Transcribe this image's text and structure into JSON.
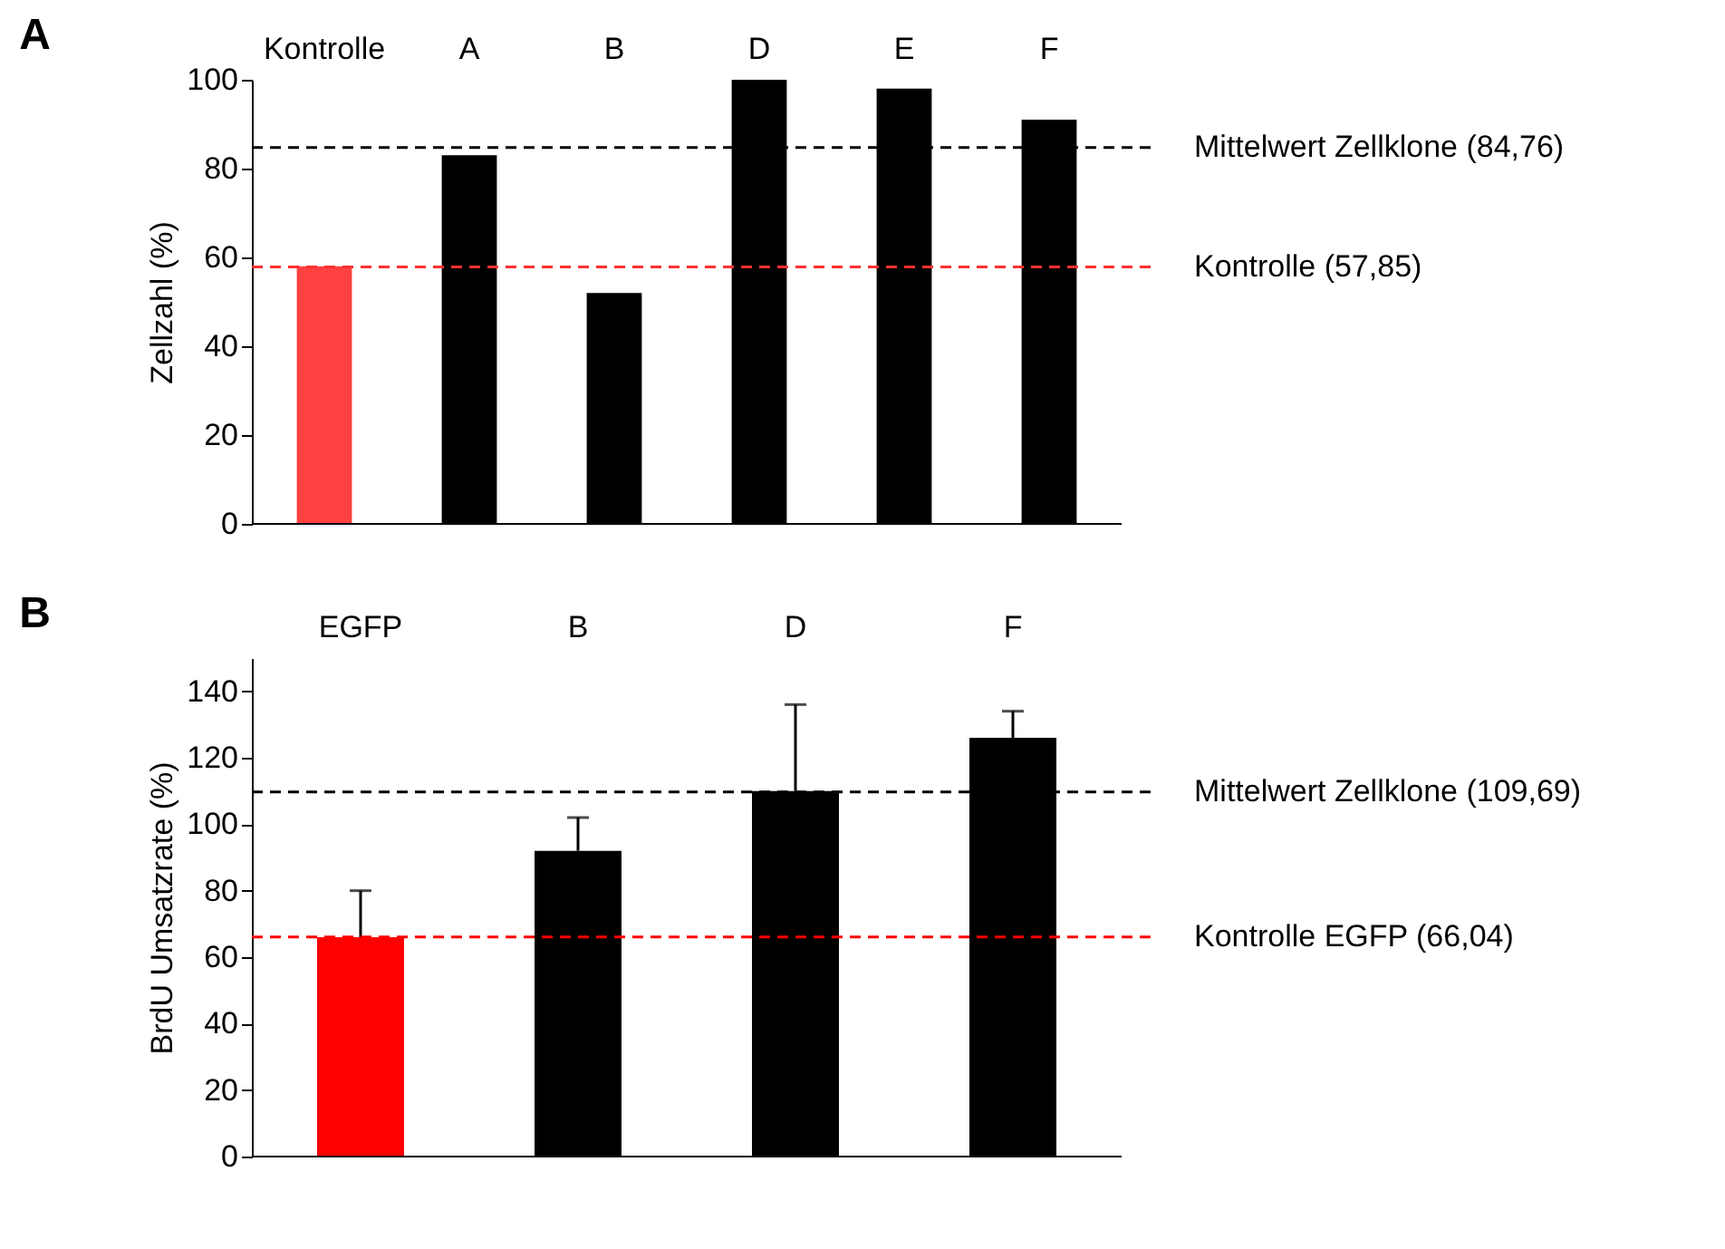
{
  "chart_data": [
    {
      "type": "bar",
      "title": "A",
      "ylabel": "Zellzahl (%)",
      "categories": [
        "Kontrolle",
        "A",
        "B",
        "D",
        "E",
        "F"
      ],
      "values": [
        58,
        83,
        52,
        100,
        98,
        91
      ],
      "colors": [
        "#ff4040",
        "#000000",
        "#000000",
        "#000000",
        "#000000",
        "#000000"
      ],
      "ylim": [
        0,
        100
      ],
      "yticks": [
        0,
        20,
        40,
        60,
        80,
        100
      ],
      "grid": false,
      "ref_lines": [
        {
          "axis": "y",
          "value": 84.76,
          "label": "Mittelwert Zellklone (84,76)",
          "color": "#000000",
          "line_style": "dashed"
        },
        {
          "axis": "y",
          "value": 57.85,
          "label": "Kontrolle (57,85)",
          "color": "#ff3030",
          "line_style": "dashed"
        }
      ]
    },
    {
      "type": "bar",
      "title": "B",
      "ylabel": "BrdU Umsatzrate (%)",
      "categories": [
        "EGFP",
        "B",
        "D",
        "F"
      ],
      "values": [
        66,
        92,
        110,
        126
      ],
      "colors": [
        "#ff0000",
        "#000000",
        "#000000",
        "#000000"
      ],
      "errors": [
        [
          66,
          80
        ],
        [
          92,
          102
        ],
        [
          110,
          136
        ],
        [
          126,
          134
        ]
      ],
      "ylim": [
        0,
        150
      ],
      "yticks": [
        0,
        20,
        40,
        60,
        80,
        100,
        120,
        140
      ],
      "grid": false,
      "ref_lines": [
        {
          "axis": "y",
          "value": 109.69,
          "label": "Mittelwert Zellklone (109,69)",
          "color": "#000000",
          "line_style": "dashed"
        },
        {
          "axis": "y",
          "value": 66.04,
          "label": "Kontrolle EGFP (66,04)",
          "color": "#ff0000",
          "line_style": "dashed"
        }
      ]
    }
  ]
}
